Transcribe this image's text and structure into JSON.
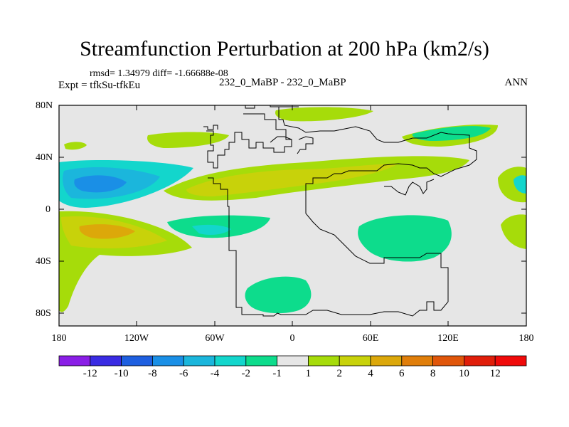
{
  "title": "Streamfunction Perturbation at 200 hPa (km2/s)",
  "stats": "rmsd= 1.34979 diff= -1.66688e-08",
  "experiment": "Expt = tfkSu-tfkEu",
  "case_label": "232_0_MaBP - 232_0_MaBP",
  "season": "ANN",
  "axes": {
    "y_ticks": [
      "80N",
      "40N",
      "0",
      "40S",
      "80S"
    ],
    "x_ticks": [
      "180",
      "120W",
      "60W",
      "0",
      "60E",
      "120E",
      "180"
    ]
  },
  "colorbar": {
    "labels": [
      "-12",
      "-10",
      "-8",
      "-6",
      "-4",
      "-2",
      "-1",
      "1",
      "2",
      "4",
      "6",
      "8",
      "10",
      "12"
    ],
    "colors": [
      "#8a1ee6",
      "#3a2be3",
      "#1e5fe0",
      "#1a8fe6",
      "#1bb6dc",
      "#13d6cc",
      "#0ddc8c",
      "#e6e6e6",
      "#a6dc0a",
      "#c8d20a",
      "#dca80a",
      "#e07e0a",
      "#e0560a",
      "#e01e0a",
      "#f00a0a"
    ]
  }
}
